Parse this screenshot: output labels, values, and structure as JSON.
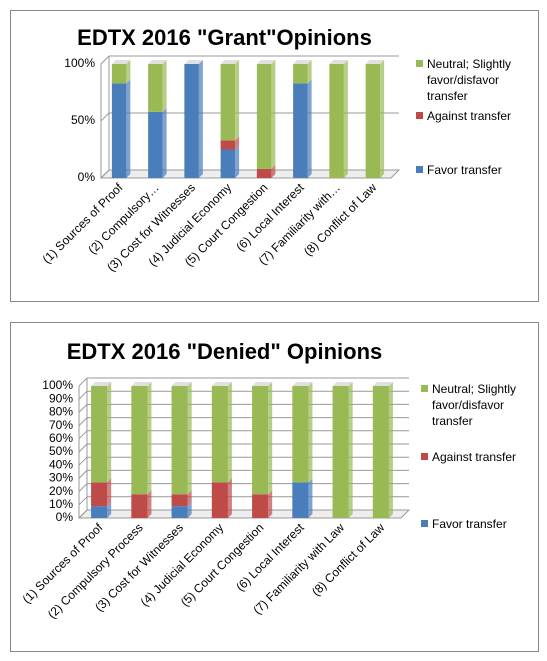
{
  "chart_data": [
    {
      "type": "stacked-bar",
      "title": "EDTX 2016 \"Grant\"Opinions",
      "categories": [
        "(1) Sources of Proof",
        "(2) Compulsory…",
        "(3) Cost for Witnesses",
        "(4) Judicial Economy",
        "(5) Court Congestion",
        "(6) Local Interest",
        "(7) Familiarity with…",
        "(8) Conflict of Law"
      ],
      "series": [
        {
          "name": "Favor transfer",
          "color": "#4a7ebb",
          "values": [
            83,
            58,
            100,
            25,
            0,
            83,
            0,
            0
          ]
        },
        {
          "name": "Against transfer",
          "color": "#be4b48",
          "values": [
            0,
            0,
            0,
            8,
            8,
            0,
            0,
            0
          ]
        },
        {
          "name": "Neutral; Slightly favor/disfavor transfer",
          "color": "#98b954",
          "values": [
            17,
            42,
            0,
            67,
            92,
            17,
            100,
            100
          ]
        }
      ],
      "ylim": [
        0,
        100
      ],
      "yticks": [
        {
          "value": 0,
          "label": "0%"
        },
        {
          "value": 50,
          "label": "50%"
        },
        {
          "value": 100,
          "label": "100%"
        }
      ],
      "grid": true
    },
    {
      "type": "stacked-bar",
      "title": "EDTX 2016 \"Denied\" Opinions",
      "categories": [
        "(1) Sources of Proof",
        "(2) Compulsory Process",
        "(3) Cost for Witnesses",
        "(4) Judicial Economy",
        "(5) Court Congestion",
        "(6) Local Interest",
        "(7) Familiarity with Law",
        "(8) Conflict of Law"
      ],
      "series": [
        {
          "name": "Favor transfer",
          "color": "#4a7ebb",
          "values": [
            9,
            0,
            9,
            0,
            0,
            27,
            0,
            0
          ]
        },
        {
          "name": "Against transfer",
          "color": "#be4b48",
          "values": [
            18,
            18,
            9,
            27,
            18,
            0,
            0,
            0
          ]
        },
        {
          "name": "Neutral; Slightly favor/disfavor transfer",
          "color": "#98b954",
          "values": [
            73,
            82,
            82,
            73,
            82,
            73,
            100,
            100
          ]
        }
      ],
      "ylim": [
        0,
        100
      ],
      "yticks": [
        {
          "value": 0,
          "label": "0%"
        },
        {
          "value": 10,
          "label": "10%"
        },
        {
          "value": 20,
          "label": "20%"
        },
        {
          "value": 30,
          "label": "30%"
        },
        {
          "value": 40,
          "label": "40%"
        },
        {
          "value": 50,
          "label": "50%"
        },
        {
          "value": 60,
          "label": "60%"
        },
        {
          "value": 70,
          "label": "70%"
        },
        {
          "value": 80,
          "label": "80%"
        },
        {
          "value": 90,
          "label": "90%"
        },
        {
          "value": 100,
          "label": "100%"
        }
      ],
      "grid": true
    }
  ]
}
